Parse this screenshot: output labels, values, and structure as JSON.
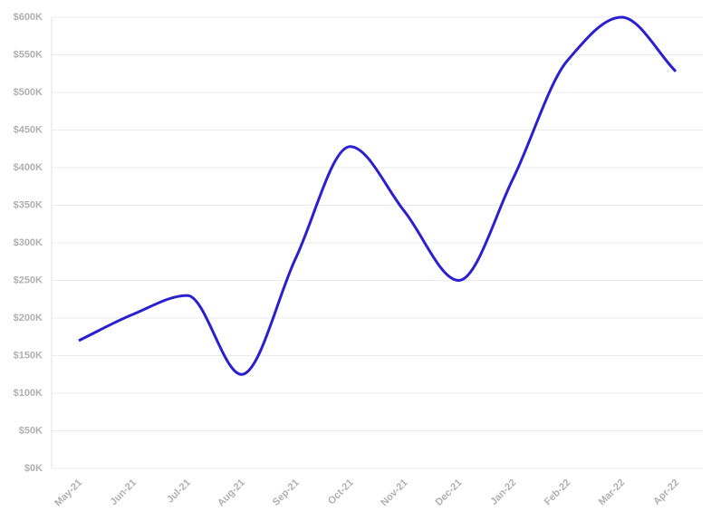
{
  "chart_data": {
    "type": "line",
    "categories": [
      "May-21",
      "Jun-21",
      "Jul-21",
      "Aug-21",
      "Sep-21",
      "Oct-21",
      "Nov-21",
      "Dec-21",
      "Jan-22",
      "Feb-22",
      "Mar-22",
      "Apr-22"
    ],
    "values": [
      170000,
      205000,
      230000,
      125000,
      280000,
      428000,
      342000,
      250000,
      385000,
      542000,
      600000,
      528000
    ],
    "color": "#2b1fd0",
    "ylim": [
      0,
      600000
    ],
    "yticks": [
      {
        "value": 0,
        "label": "$0K"
      },
      {
        "value": 50000,
        "label": "$50K"
      },
      {
        "value": 100000,
        "label": "$100K"
      },
      {
        "value": 150000,
        "label": "$150K"
      },
      {
        "value": 200000,
        "label": "$200K"
      },
      {
        "value": 250000,
        "label": "$250K"
      },
      {
        "value": 300000,
        "label": "$300K"
      },
      {
        "value": 350000,
        "label": "$350K"
      },
      {
        "value": 400000,
        "label": "$400K"
      },
      {
        "value": 450000,
        "label": "$450K"
      },
      {
        "value": 500000,
        "label": "$500K"
      },
      {
        "value": 550000,
        "label": "$550K"
      },
      {
        "value": 600000,
        "label": "$600K"
      }
    ],
    "grid": true
  }
}
